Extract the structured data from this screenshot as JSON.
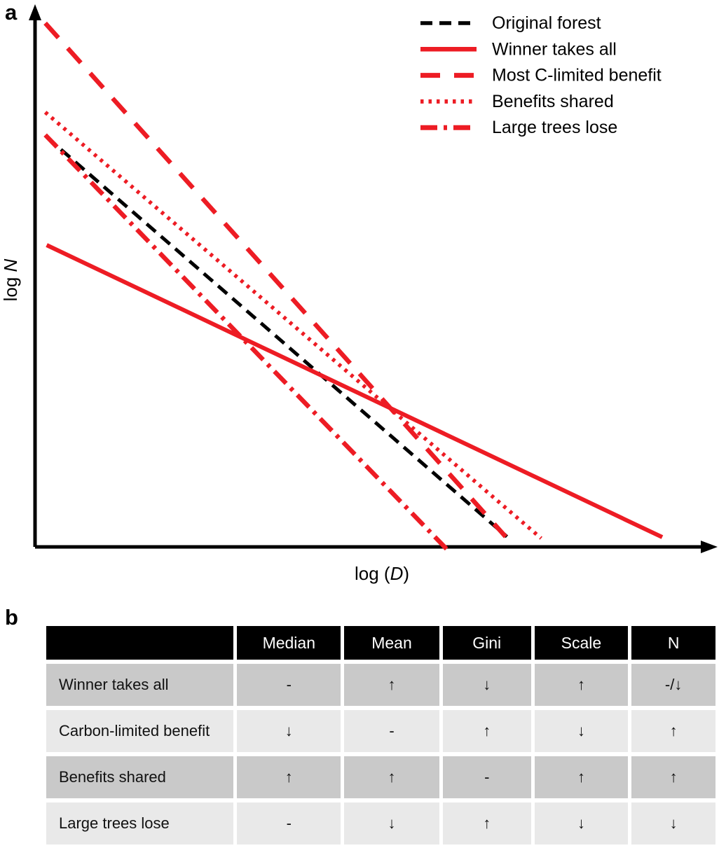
{
  "panels": {
    "a_label": "a",
    "b_label": "b"
  },
  "chart_data": {
    "type": "line",
    "title": "",
    "xlabel": "log (D)",
    "ylabel": "log N",
    "labels": {
      "ylabel_prefix": "log ",
      "ylabel_var": "N",
      "xlabel_prefix": "log (",
      "xlabel_var": "D",
      "xlabel_suffix": ")"
    },
    "axes_note": "conceptual log-log size-distribution sketch; axes have no tick marks or numeric scale",
    "legend_position": "top-right",
    "grid": false,
    "series": [
      {
        "name": "Original forest",
        "color": "#000000",
        "style": "dashed",
        "dash": "17 10",
        "width": 5,
        "points_frac": [
          [
            0.017,
            0.759
          ],
          [
            0.69,
            0.019
          ]
        ]
      },
      {
        "name": "Winner takes all",
        "color": "#ed1c24",
        "style": "solid",
        "dash": "",
        "width": 6,
        "points_frac": [
          [
            0.017,
            0.559
          ],
          [
            0.917,
            0.018
          ]
        ]
      },
      {
        "name": "Most C-limited benefit",
        "color": "#ed1c24",
        "style": "dashed",
        "dash": "28 20",
        "width": 6.5,
        "points_frac": [
          [
            0.015,
            0.97
          ],
          [
            0.688,
            0.019
          ]
        ]
      },
      {
        "name": "Benefits shared",
        "color": "#ed1c24",
        "style": "dotted",
        "dash": "4.5 7",
        "width": 5.5,
        "points_frac": [
          [
            0.015,
            0.805
          ],
          [
            0.74,
            0.016
          ]
        ]
      },
      {
        "name": "Large trees lose",
        "color": "#ed1c24",
        "style": "dash-dot",
        "dash": "24 9 5 9",
        "width": 6.5,
        "points_frac": [
          [
            0.015,
            0.763
          ],
          [
            0.608,
            -0.012
          ]
        ]
      }
    ]
  },
  "table": {
    "headers": [
      "",
      "Median",
      "Mean",
      "Gini",
      "Scale",
      "N"
    ],
    "rows": [
      {
        "label": "Winner takes all",
        "values": [
          "-",
          "↑",
          "↓",
          "↑",
          "-/↓"
        ]
      },
      {
        "label": "Carbon-limited benefit",
        "values": [
          "↓",
          "-",
          "↑",
          "↓",
          "↑"
        ]
      },
      {
        "label": "Benefits shared",
        "values": [
          "↑",
          "↑",
          "-",
          "↑",
          "↑"
        ]
      },
      {
        "label": "Large trees lose",
        "values": [
          "-",
          "↓",
          "↑",
          "↓",
          "↓"
        ]
      }
    ],
    "colors": {
      "header_bg": "#000000",
      "header_text": "#ffffff",
      "row_odd_bg": "#c9c9c9",
      "row_even_bg": "#e9e9e9"
    }
  },
  "colors": {
    "accent_red": "#ed1c24",
    "black": "#000000"
  }
}
